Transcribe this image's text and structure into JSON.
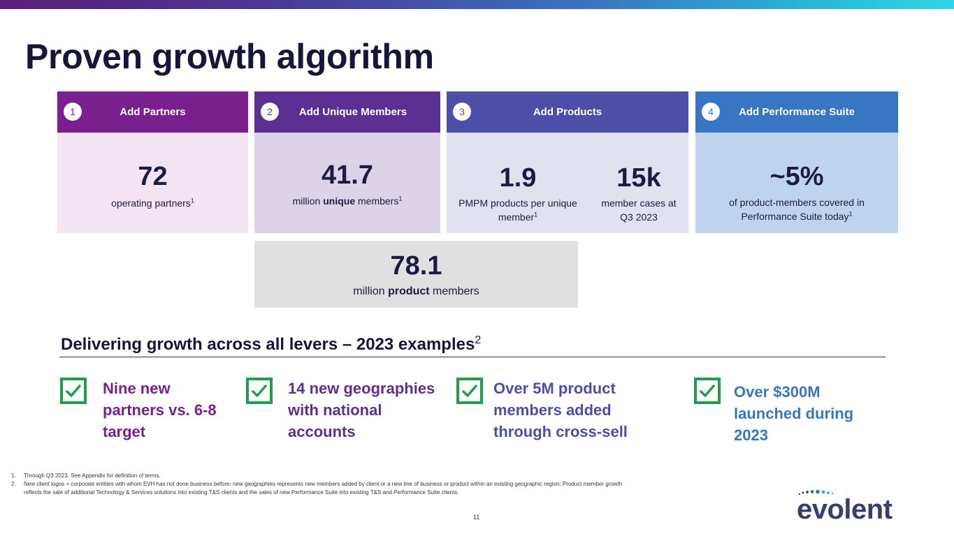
{
  "header": {
    "title": "Proven growth algorithm"
  },
  "cards": [
    {
      "num": "1",
      "heading": "Add Partners",
      "big": "72",
      "sub": "operating partners",
      "sup": "1"
    },
    {
      "num": "2",
      "heading": "Add Unique Members",
      "big": "41.7",
      "sub_pre": "million ",
      "sub_bold": "unique",
      "sub_post": " members",
      "sup": "1"
    },
    {
      "num": "3",
      "heading": "Add Products",
      "left": {
        "big": "1.9",
        "sub_line1": "PMPM products per unique",
        "sub_line2": "member",
        "sup": "1"
      },
      "right": {
        "big": "15k",
        "sub_line1": "member cases at",
        "sub_line2": "Q3 2023"
      }
    },
    {
      "num": "4",
      "heading": "Add Performance Suite",
      "big": "~5%",
      "sub_line1": "of product-members covered in",
      "sub_line2": "Performance Suite today",
      "sup": "1"
    }
  ],
  "total": {
    "big": "78.1",
    "sub_pre": "million ",
    "sub_bold": "product",
    "sub_post": " members"
  },
  "section": {
    "title": "Delivering growth across all levers – 2023 examples",
    "sup": "2"
  },
  "examples": [
    {
      "lines": [
        "Nine new",
        "partners vs. 6-8",
        "target"
      ],
      "color": "#7a1f8e"
    },
    {
      "lines": [
        "14 new geographies",
        "with national",
        "accounts"
      ],
      "color": "#5c2f92"
    },
    {
      "lines": [
        "Over 5M product",
        "members added",
        "through cross-sell"
      ],
      "color": "#4c4ea8"
    },
    {
      "lines": [
        "Over $300M",
        "launched during",
        "2023"
      ],
      "color": "#3876c4"
    }
  ],
  "footnotes": [
    {
      "n": "1.",
      "text": "Through Q3 2023.  See Appendix for definition of terms."
    },
    {
      "n": "2.",
      "text": "New client logos = corporate entities with whom EVH has not done business before; new geographies represents new members added by client or a new line of business or product  within an existing geographic region; Product member growth reflects the sale of additional Technology & Services solutions into existing T&S clients and the sales of new Performance Suite into existing T&S and Performance Suite clients."
    }
  ],
  "page_number": "11",
  "logo": {
    "text": "evolent"
  },
  "colors": {
    "check": "#1e9e4a"
  }
}
